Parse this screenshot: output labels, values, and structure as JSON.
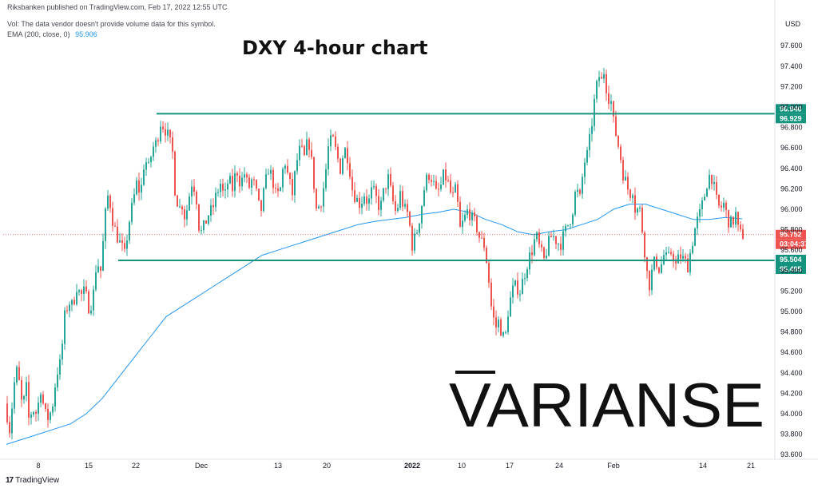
{
  "header": {
    "published_by": "Riksbanken published on TradingView.com, Feb 17, 2022 12:55 UTC",
    "vol_note": "Vol: The data vendor doesn't provide volume data for this symbol.",
    "ema_label": "EMA (200, close, 0)",
    "ema_value": "95.906"
  },
  "currency_label": "USD",
  "footer": {
    "logo_text": "TradingView",
    "logo_mark": "17"
  },
  "watermark_text": "VARIANSE",
  "colors": {
    "up_candle": "#26a69a",
    "down_candle": "#ef5350",
    "ema_line": "#2196f3",
    "level_line": "#14947f",
    "level_label_bg": "#14947f",
    "price_label_bg": "#ef5350"
  },
  "chart_data": {
    "type": "candlestick",
    "title": "DXY 4-hour chart",
    "ylim": [
      93.5,
      97.85
    ],
    "y_ticks": [
      "97.600",
      "97.400",
      "97.200",
      "97.000",
      "96.800",
      "96.600",
      "96.400",
      "96.200",
      "96.000",
      "95.800",
      "95.600",
      "95.400",
      "95.200",
      "95.000",
      "94.800",
      "94.600",
      "94.400",
      "94.200",
      "94.000",
      "93.800",
      "93.600"
    ],
    "x_ticks": [
      "8",
      "15",
      "22",
      "Dec",
      "13",
      "20",
      "2022",
      "10",
      "17",
      "24",
      "Feb",
      "14",
      "21"
    ],
    "resistance": {
      "labels": [
        "96.940",
        "96.929"
      ],
      "value": 96.935
    },
    "support": {
      "labels": [
        "95.504",
        "95.495"
      ],
      "value": 95.5
    },
    "last_price": {
      "value": 95.752,
      "label": "95.752",
      "countdown": "03:04:37"
    },
    "price_path": [
      [
        0,
        94.1
      ],
      [
        4,
        93.95
      ],
      [
        6,
        93.85
      ],
      [
        10,
        94.15
      ],
      [
        14,
        94.45
      ],
      [
        18,
        94.3
      ],
      [
        22,
        94.05
      ],
      [
        27,
        94.25
      ],
      [
        30,
        93.95
      ],
      [
        35,
        94.05
      ],
      [
        40,
        94.0
      ],
      [
        45,
        94.25
      ],
      [
        50,
        94.0
      ],
      [
        55,
        93.95
      ],
      [
        60,
        94.1
      ],
      [
        65,
        94.4
      ],
      [
        70,
        94.5
      ],
      [
        75,
        94.95
      ],
      [
        80,
        95.1
      ],
      [
        85,
        95.05
      ],
      [
        90,
        95.25
      ],
      [
        95,
        95.15
      ],
      [
        100,
        95.2
      ],
      [
        105,
        95.05
      ],
      [
        110,
        95.1
      ],
      [
        115,
        95.5
      ],
      [
        120,
        95.4
      ],
      [
        125,
        95.85
      ],
      [
        128,
        96.15
      ],
      [
        132,
        96.05
      ],
      [
        136,
        95.85
      ],
      [
        140,
        95.75
      ],
      [
        145,
        95.65
      ],
      [
        148,
        95.6
      ],
      [
        150,
        95.55
      ],
      [
        155,
        95.85
      ],
      [
        160,
        96.05
      ],
      [
        165,
        96.25
      ],
      [
        170,
        96.15
      ],
      [
        175,
        96.5
      ],
      [
        180,
        96.4
      ],
      [
        185,
        96.6
      ],
      [
        190,
        96.65
      ],
      [
        195,
        96.85
      ],
      [
        200,
        96.8
      ],
      [
        205,
        96.7
      ],
      [
        210,
        96.55
      ],
      [
        213,
        96.2
      ],
      [
        218,
        96.0
      ],
      [
        222,
        96.05
      ],
      [
        226,
        95.9
      ],
      [
        230,
        96.1
      ],
      [
        235,
        96.3
      ],
      [
        240,
        96.1
      ],
      [
        244,
        95.75
      ],
      [
        248,
        95.8
      ],
      [
        255,
        95.95
      ],
      [
        260,
        96.0
      ],
      [
        265,
        96.15
      ],
      [
        270,
        96.25
      ],
      [
        275,
        96.1
      ],
      [
        280,
        96.3
      ],
      [
        285,
        96.2
      ],
      [
        290,
        96.4
      ],
      [
        295,
        96.25
      ],
      [
        300,
        96.35
      ],
      [
        305,
        96.2
      ],
      [
        310,
        96.3
      ],
      [
        315,
        96.15
      ],
      [
        320,
        95.95
      ],
      [
        325,
        96.2
      ],
      [
        330,
        96.4
      ],
      [
        335,
        96.3
      ],
      [
        340,
        96.1
      ],
      [
        345,
        96.2
      ],
      [
        350,
        96.5
      ],
      [
        355,
        96.3
      ],
      [
        360,
        96.15
      ],
      [
        365,
        96.45
      ],
      [
        370,
        96.6
      ],
      [
        375,
        96.5
      ],
      [
        380,
        96.7
      ],
      [
        385,
        96.4
      ],
      [
        390,
        96.0
      ],
      [
        395,
        96.05
      ],
      [
        400,
        96.25
      ],
      [
        405,
        96.6
      ],
      [
        410,
        96.7
      ],
      [
        415,
        96.55
      ],
      [
        420,
        96.4
      ],
      [
        425,
        96.6
      ],
      [
        430,
        96.5
      ],
      [
        435,
        96.2
      ],
      [
        440,
        96.1
      ],
      [
        445,
        96.05
      ],
      [
        450,
        96.15
      ],
      [
        455,
        96.05
      ],
      [
        460,
        96.2
      ],
      [
        465,
        96.1
      ],
      [
        470,
        96.0
      ],
      [
        475,
        96.2
      ],
      [
        480,
        96.3
      ],
      [
        485,
        96.1
      ],
      [
        490,
        95.95
      ],
      [
        495,
        96.15
      ],
      [
        500,
        96.0
      ],
      [
        505,
        95.95
      ],
      [
        510,
        95.65
      ],
      [
        515,
        95.75
      ],
      [
        520,
        95.95
      ],
      [
        525,
        96.2
      ],
      [
        530,
        96.35
      ],
      [
        535,
        96.3
      ],
      [
        540,
        96.15
      ],
      [
        545,
        96.2
      ],
      [
        550,
        96.35
      ],
      [
        555,
        96.25
      ],
      [
        560,
        96.1
      ],
      [
        565,
        96.2
      ],
      [
        570,
        95.8
      ],
      [
        575,
        95.9
      ],
      [
        580,
        96.0
      ],
      [
        585,
        95.9
      ],
      [
        590,
        95.85
      ],
      [
        595,
        95.7
      ],
      [
        600,
        95.65
      ],
      [
        605,
        95.4
      ],
      [
        608,
        95.1
      ],
      [
        611,
        94.95
      ],
      [
        615,
        94.85
      ],
      [
        618,
        94.9
      ],
      [
        622,
        94.8
      ],
      [
        626,
        94.7
      ],
      [
        630,
        95.0
      ],
      [
        635,
        95.2
      ],
      [
        640,
        95.25
      ],
      [
        645,
        95.2
      ],
      [
        650,
        95.35
      ],
      [
        655,
        95.5
      ],
      [
        660,
        95.6
      ],
      [
        665,
        95.75
      ],
      [
        670,
        95.6
      ],
      [
        675,
        95.5
      ],
      [
        680,
        95.65
      ],
      [
        685,
        95.75
      ],
      [
        690,
        95.7
      ],
      [
        695,
        95.65
      ],
      [
        700,
        95.75
      ],
      [
        705,
        95.85
      ],
      [
        710,
        95.95
      ],
      [
        715,
        96.2
      ],
      [
        720,
        96.1
      ],
      [
        725,
        96.45
      ],
      [
        730,
        96.55
      ],
      [
        735,
        96.85
      ],
      [
        738,
        97.05
      ],
      [
        741,
        97.2
      ],
      [
        744,
        97.3
      ],
      [
        747,
        97.25
      ],
      [
        750,
        97.35
      ],
      [
        753,
        97.2
      ],
      [
        756,
        97.1
      ],
      [
        759,
        97.05
      ],
      [
        762,
        96.85
      ],
      [
        766,
        96.7
      ],
      [
        770,
        96.55
      ],
      [
        774,
        96.35
      ],
      [
        778,
        96.25
      ],
      [
        782,
        96.15
      ],
      [
        786,
        96.2
      ],
      [
        790,
        95.95
      ],
      [
        794,
        96.05
      ],
      [
        798,
        95.8
      ],
      [
        801,
        95.6
      ],
      [
        805,
        95.3
      ],
      [
        808,
        95.25
      ],
      [
        811,
        95.45
      ],
      [
        815,
        95.5
      ],
      [
        820,
        95.4
      ],
      [
        825,
        95.55
      ],
      [
        830,
        95.5
      ],
      [
        835,
        95.6
      ],
      [
        840,
        95.45
      ],
      [
        845,
        95.55
      ],
      [
        850,
        95.5
      ],
      [
        855,
        95.45
      ],
      [
        860,
        95.65
      ],
      [
        865,
        95.85
      ],
      [
        870,
        95.95
      ],
      [
        875,
        96.1
      ],
      [
        880,
        96.3
      ],
      [
        884,
        96.35
      ],
      [
        887,
        96.25
      ],
      [
        890,
        96.1
      ],
      [
        895,
        96.0
      ],
      [
        900,
        96.05
      ],
      [
        905,
        95.9
      ],
      [
        910,
        95.85
      ],
      [
        915,
        95.95
      ],
      [
        918,
        95.8
      ],
      [
        921,
        95.752
      ]
    ],
    "ema_path": [
      [
        0,
        93.7
      ],
      [
        20,
        93.75
      ],
      [
        40,
        93.8
      ],
      [
        60,
        93.85
      ],
      [
        80,
        93.9
      ],
      [
        100,
        94.0
      ],
      [
        120,
        94.15
      ],
      [
        140,
        94.35
      ],
      [
        160,
        94.55
      ],
      [
        180,
        94.75
      ],
      [
        200,
        94.95
      ],
      [
        220,
        95.05
      ],
      [
        240,
        95.15
      ],
      [
        260,
        95.25
      ],
      [
        280,
        95.35
      ],
      [
        300,
        95.45
      ],
      [
        320,
        95.55
      ],
      [
        340,
        95.6
      ],
      [
        360,
        95.65
      ],
      [
        380,
        95.7
      ],
      [
        400,
        95.75
      ],
      [
        420,
        95.8
      ],
      [
        440,
        95.85
      ],
      [
        460,
        95.88
      ],
      [
        480,
        95.9
      ],
      [
        500,
        95.92
      ],
      [
        520,
        95.95
      ],
      [
        540,
        95.97
      ],
      [
        560,
        96.0
      ],
      [
        580,
        95.97
      ],
      [
        600,
        95.9
      ],
      [
        620,
        95.85
      ],
      [
        640,
        95.78
      ],
      [
        660,
        95.75
      ],
      [
        680,
        95.78
      ],
      [
        700,
        95.8
      ],
      [
        720,
        95.85
      ],
      [
        740,
        95.9
      ],
      [
        760,
        96.0
      ],
      [
        780,
        96.05
      ],
      [
        800,
        96.05
      ],
      [
        820,
        96.0
      ],
      [
        840,
        95.95
      ],
      [
        860,
        95.9
      ],
      [
        880,
        95.9
      ],
      [
        900,
        95.92
      ],
      [
        921,
        95.906
      ]
    ]
  }
}
